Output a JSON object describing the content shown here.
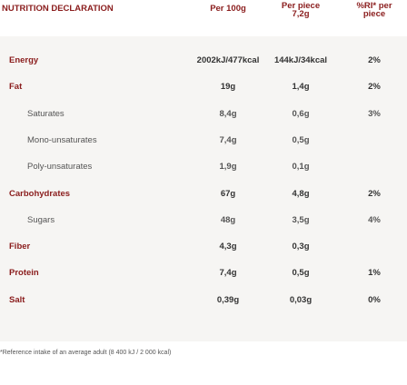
{
  "header": {
    "title": "NUTRITION DECLARATION",
    "columns": [
      [
        "Per 100g"
      ],
      [
        "Per piece",
        "7,2g"
      ],
      [
        "%RI* per",
        "piece"
      ]
    ]
  },
  "rows": [
    {
      "label": "Energy",
      "values": [
        "2002kJ/477kcal",
        "144kJ/34kcal",
        "2%"
      ]
    },
    {
      "label": "Fat",
      "values": [
        "19g",
        "1,4g",
        "2%"
      ],
      "sub": [
        {
          "label": "Saturates",
          "values": [
            "8,4g",
            "0,6g",
            "3%"
          ]
        },
        {
          "label": "Mono-unsaturates",
          "values": [
            "7,4g",
            "0,5g"
          ]
        },
        {
          "label": "Poly-unsaturates",
          "values": [
            "1,9g",
            "0,1g"
          ]
        }
      ]
    },
    {
      "label": "Carbohydrates",
      "values": [
        "67g",
        "4,8g",
        "2%"
      ],
      "sub": [
        {
          "label": "Sugars",
          "values": [
            "48g",
            "3,5g",
            "4%"
          ]
        }
      ]
    },
    {
      "label": "Fiber",
      "values": [
        "4,3g",
        "0,3g"
      ]
    },
    {
      "label": "Protein",
      "values": [
        "7,4g",
        "0,5g",
        "1%"
      ]
    },
    {
      "label": "Salt",
      "values": [
        "0,39g",
        "0,03g",
        "0%"
      ]
    }
  ],
  "footnote": "*Reference intake of an average adult (8 400 kJ / 2 000 kcal)"
}
